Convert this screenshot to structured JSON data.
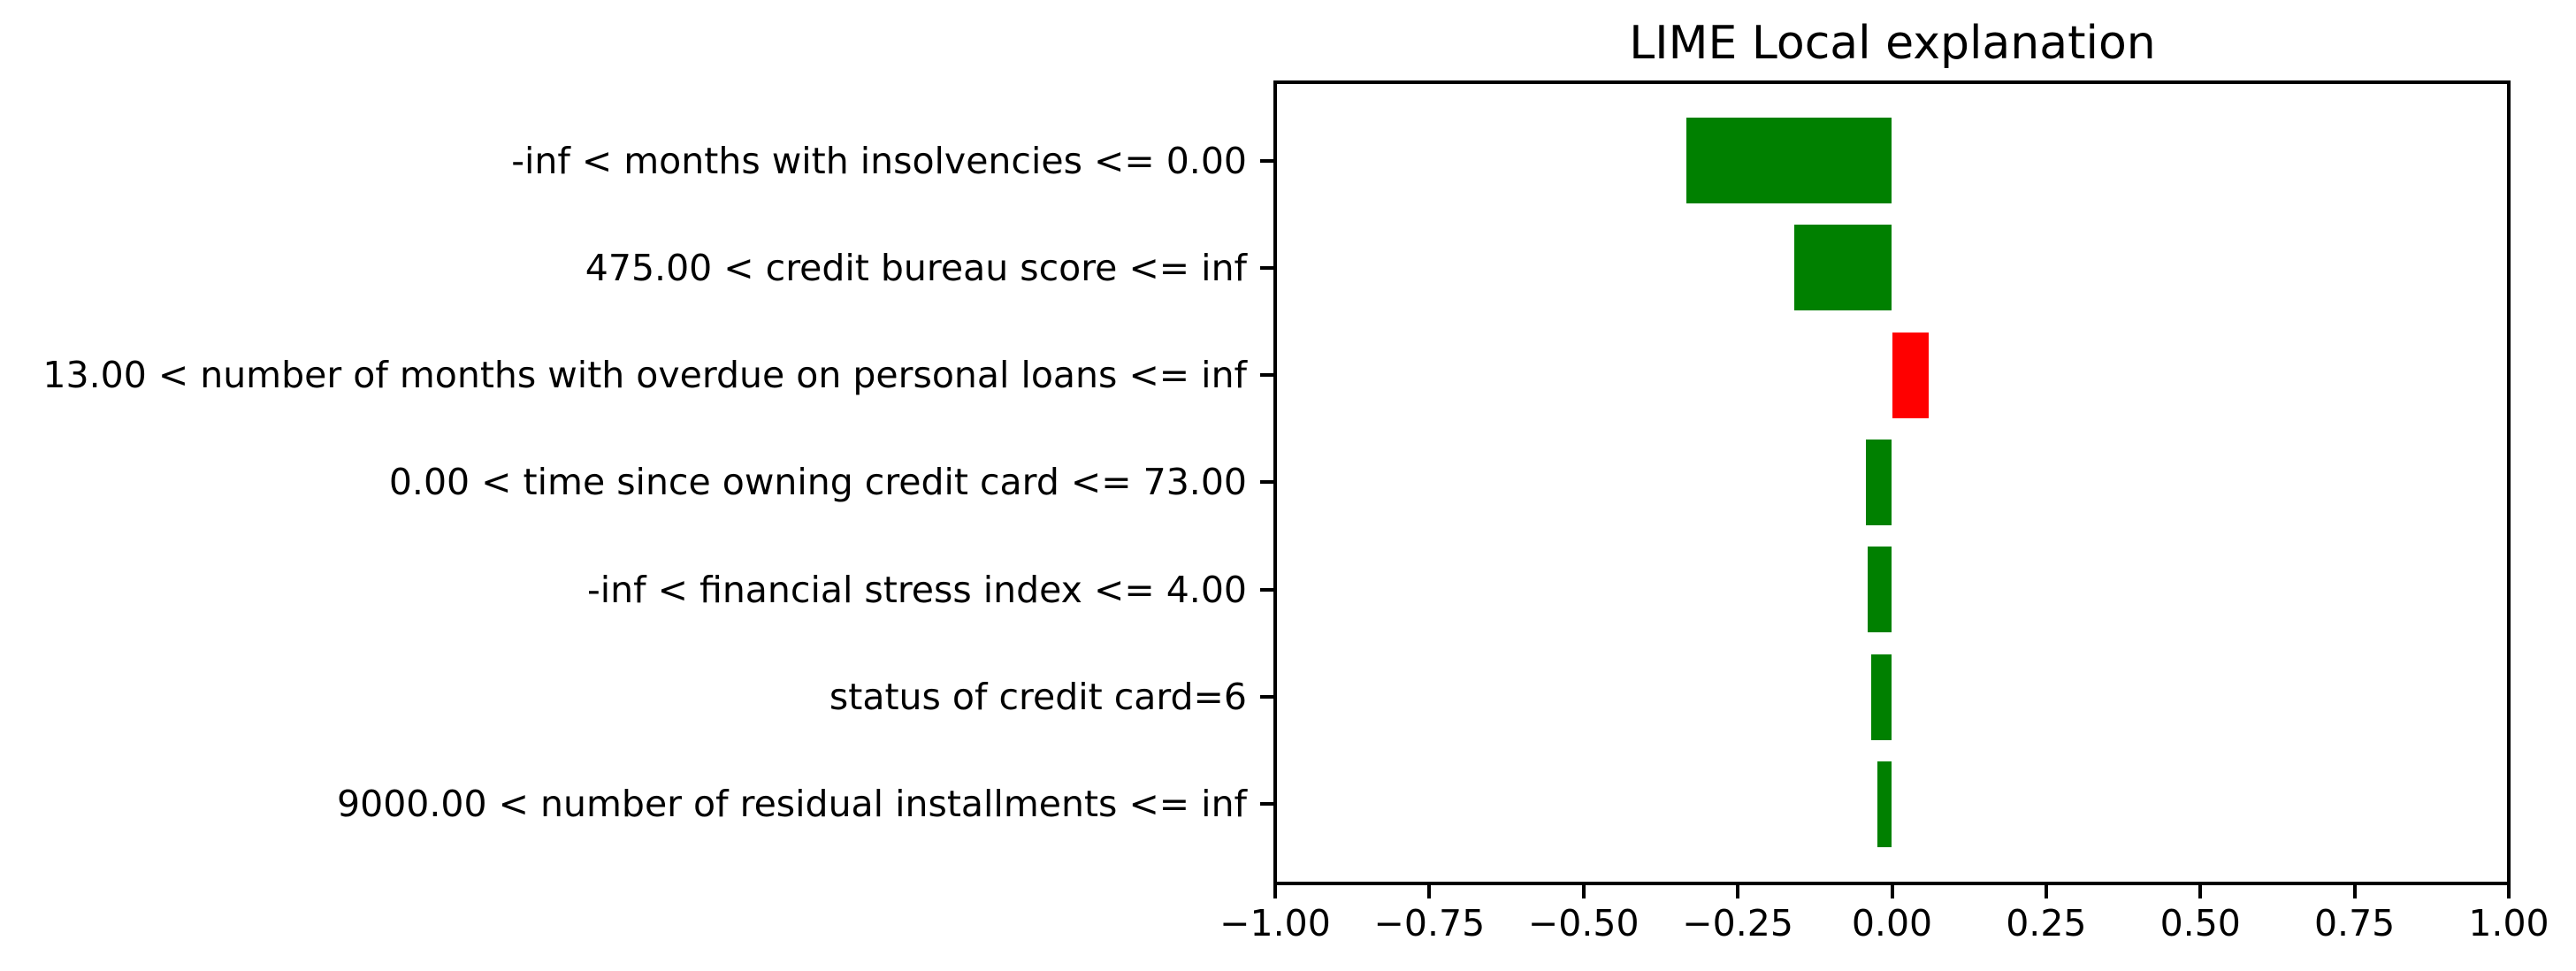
{
  "title": "LIME Local explanation",
  "chart_data": {
    "type": "bar",
    "orientation": "horizontal",
    "title": "LIME Local explanation",
    "categories": [
      "-inf < months with insolvencies <= 0.00",
      "475.00 < credit bureau score <= inf",
      "13.00 < number of months with overdue on personal loans <= inf",
      "0.00 < time since owning credit card <= 73.00",
      "-inf < financial stress index <= 4.00",
      "status of credit card=6",
      "9000.00 < number of residual installments <= inf"
    ],
    "values": [
      -0.334,
      -0.158,
      0.06,
      -0.042,
      -0.039,
      -0.033,
      -0.024
    ],
    "bar_colors": [
      "#008000",
      "#008000",
      "#ff0000",
      "#008000",
      "#008000",
      "#008000",
      "#008000"
    ],
    "negative_color": "#008000",
    "positive_color": "#ff0000",
    "xlabel": "",
    "ylabel": "",
    "xlim": [
      -1.0,
      1.0
    ],
    "x_ticks": [
      -1.0,
      -0.75,
      -0.5,
      -0.25,
      0.0,
      0.25,
      0.5,
      0.75,
      1.0
    ],
    "x_tick_labels": [
      "−1.00",
      "−0.75",
      "−0.50",
      "−0.25",
      "0.00",
      "0.25",
      "0.50",
      "0.75",
      "1.00"
    ],
    "grid": false,
    "legend": "none",
    "background_color": "#ffffff",
    "text_color": "#000000",
    "spine_color": "#000000"
  }
}
